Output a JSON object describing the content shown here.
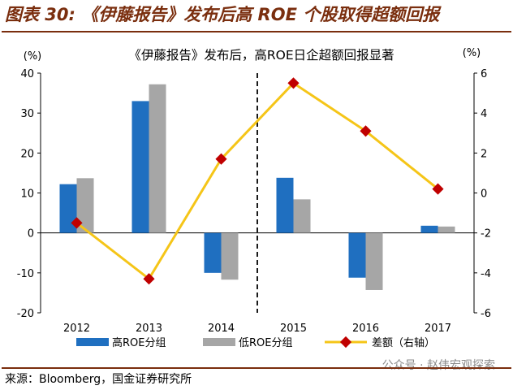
{
  "figure_title": "图表 30: 《伊藤报告》发布后高 ROE 个股取得超额回报",
  "source": "来源：Bloomberg，国金证券研究所",
  "watermark": "公众号 · 赵伟宏观探索",
  "colors": {
    "title": "#7a2e0e",
    "high_roe": "#1f6fc0",
    "low_roe": "#a6a6a6",
    "diff": "#f5c518",
    "diff_marker": "#c00000"
  },
  "chart_data": {
    "type": "bar",
    "title": "《伊藤报告》发布后，高ROE日企超额回报显著",
    "categories": [
      "2012",
      "2013",
      "2014",
      "2015",
      "2016",
      "2017"
    ],
    "left_unit": "(%)",
    "right_unit": "(%)",
    "ylim": [
      -20,
      40
    ],
    "y2lim": [
      -6,
      6
    ],
    "yticks": [
      "40",
      "30",
      "20",
      "10",
      "0",
      "-10",
      "-20"
    ],
    "y2ticks": [
      "6",
      "4",
      "2",
      "0",
      "-2",
      "-4",
      "-6"
    ],
    "series": [
      {
        "name": "高ROE分组",
        "type": "bar",
        "axis": "left",
        "values": [
          12.2,
          33.0,
          -10.0,
          13.8,
          -11.2,
          1.8
        ]
      },
      {
        "name": "低ROE分组",
        "type": "bar",
        "axis": "left",
        "values": [
          13.7,
          37.2,
          -11.7,
          8.4,
          -14.3,
          1.6
        ]
      },
      {
        "name": "差额（右轴）",
        "type": "line",
        "axis": "right",
        "values": [
          -1.5,
          -4.3,
          1.7,
          5.5,
          3.1,
          0.2
        ]
      }
    ],
    "divider_between": [
      "2014",
      "2015"
    ],
    "legend_position": "bottom",
    "grid": false
  }
}
